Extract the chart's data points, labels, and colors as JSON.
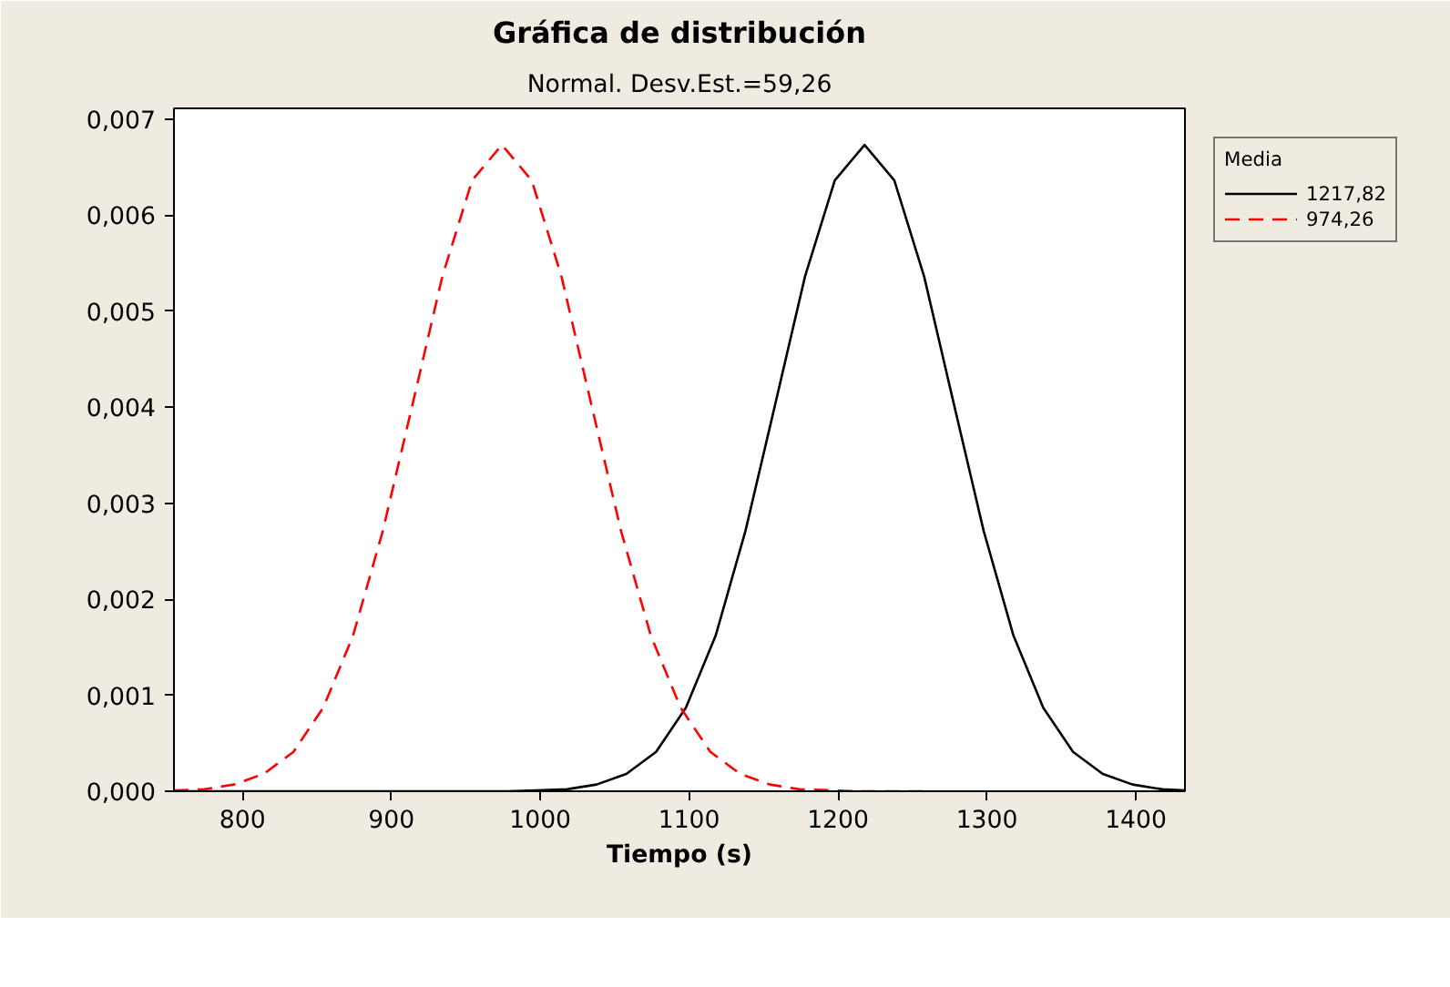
{
  "chart_data": {
    "type": "line",
    "title": "Gráfica de distribución",
    "subtitle": "Normal. Desv.Est.=59,26",
    "xlabel": "Tiempo (s)",
    "legend_title": "Media",
    "legend": "top right",
    "grid": false,
    "marker": "none",
    "xlim": [
      754,
      1433
    ],
    "xticks": [
      800,
      900,
      1000,
      1100,
      1200,
      1300,
      1400
    ],
    "ylim": [
      0,
      0.00711
    ],
    "yticks": [
      {
        "value": 0,
        "label": "0,000"
      },
      {
        "value": 0.001,
        "label": "0,001"
      },
      {
        "value": 0.002,
        "label": "0,002"
      },
      {
        "value": 0.003,
        "label": "0,003"
      },
      {
        "value": 0.004,
        "label": "0,004"
      },
      {
        "value": 0.005,
        "label": "0,005"
      },
      {
        "value": 0.006,
        "label": "0,006"
      },
      {
        "value": 0.007,
        "label": "0,007"
      }
    ],
    "series": [
      {
        "name": "1217,82",
        "color": "#000000",
        "line_style": "solid",
        "x": [
          760,
          960,
          977.82,
          997.82,
          1017.82,
          1037.82,
          1057.82,
          1077.82,
          1097.82,
          1117.82,
          1137.82,
          1157.82,
          1177.82,
          1197.82,
          1217.82,
          1237.82,
          1257.82,
          1277.82,
          1297.82,
          1317.82,
          1337.82,
          1357.82,
          1377.82,
          1397.82,
          1417.82,
          1433
        ],
        "values": [
          0,
          0,
          0,
          1e-05,
          2e-05,
          7e-05,
          0.00018,
          0.00041,
          0.00087,
          0.00162,
          0.00271,
          0.00403,
          0.00536,
          0.00636,
          0.00673,
          0.00636,
          0.00536,
          0.00403,
          0.00271,
          0.00162,
          0.00087,
          0.00041,
          0.00018,
          7e-05,
          2e-05,
          1e-05
        ]
      },
      {
        "name": "974,26",
        "color": "#ff0000",
        "line_style": "dashed",
        "x": [
          754,
          774.26,
          794.26,
          814.26,
          834.26,
          854.26,
          874.26,
          894.26,
          914.26,
          934.26,
          954.26,
          974.26,
          994.26,
          1014.26,
          1034.26,
          1054.26,
          1074.26,
          1094.26,
          1114.26,
          1134.26,
          1154.26,
          1174.26,
          1194.26,
          1214.26,
          1260
        ],
        "values": [
          1e-05,
          2e-05,
          7e-05,
          0.00018,
          0.00041,
          0.00087,
          0.00162,
          0.00271,
          0.00403,
          0.00536,
          0.00636,
          0.00673,
          0.00636,
          0.00536,
          0.00403,
          0.00271,
          0.00162,
          0.00087,
          0.00041,
          0.00018,
          7e-05,
          2e-05,
          1e-05,
          0,
          0
        ]
      }
    ]
  }
}
